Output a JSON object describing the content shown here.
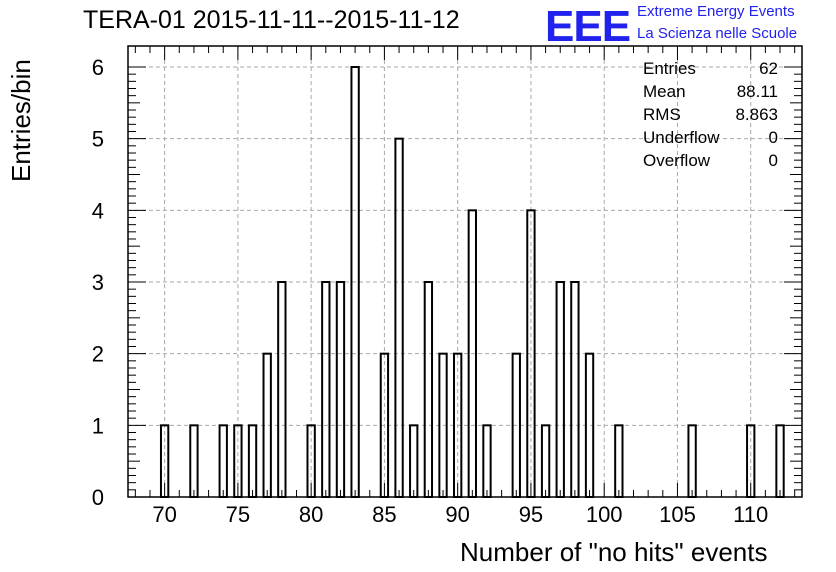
{
  "colors": {
    "logo": "#2222ee",
    "grid": "#aaaaaa",
    "axis": "#000000",
    "bar": "#000000"
  },
  "header": {
    "title": "TERA-01 2015-11-11--2015-11-12",
    "logo_text": "EEE",
    "org_line1": "Extreme Energy Events",
    "org_line2": "La Scienza nelle Scuole"
  },
  "stats": [
    {
      "label": "Entries",
      "value": "62"
    },
    {
      "label": "Mean",
      "value": "88.11"
    },
    {
      "label": "RMS",
      "value": "8.863"
    },
    {
      "label": "Underflow",
      "value": "0"
    },
    {
      "label": "Overflow",
      "value": "0"
    }
  ],
  "chart_data": {
    "type": "bar",
    "title": "TERA-01 2015-11-11--2015-11-12",
    "xlabel": "Number of \"no hits\" events",
    "ylabel": "Entries/bin",
    "xlim": [
      67.5,
      113.5
    ],
    "ylim": [
      0,
      6
    ],
    "grid": true,
    "x_ticks": [
      70,
      75,
      80,
      85,
      90,
      95,
      100,
      105,
      110
    ],
    "y_ticks": [
      0,
      1,
      2,
      3,
      4,
      5,
      6
    ],
    "bin_width": 0.5,
    "bins": [
      {
        "x": 70,
        "count": 1
      },
      {
        "x": 72,
        "count": 1
      },
      {
        "x": 74,
        "count": 1
      },
      {
        "x": 75,
        "count": 1
      },
      {
        "x": 76,
        "count": 1
      },
      {
        "x": 77,
        "count": 2
      },
      {
        "x": 78,
        "count": 3
      },
      {
        "x": 80,
        "count": 1
      },
      {
        "x": 81,
        "count": 3
      },
      {
        "x": 82,
        "count": 3
      },
      {
        "x": 83,
        "count": 6
      },
      {
        "x": 85,
        "count": 2
      },
      {
        "x": 86,
        "count": 5
      },
      {
        "x": 87,
        "count": 1
      },
      {
        "x": 88,
        "count": 3
      },
      {
        "x": 89,
        "count": 2
      },
      {
        "x": 90,
        "count": 2
      },
      {
        "x": 91,
        "count": 4
      },
      {
        "x": 92,
        "count": 1
      },
      {
        "x": 94,
        "count": 2
      },
      {
        "x": 95,
        "count": 4
      },
      {
        "x": 96,
        "count": 1
      },
      {
        "x": 97,
        "count": 3
      },
      {
        "x": 98,
        "count": 3
      },
      {
        "x": 99,
        "count": 2
      },
      {
        "x": 101,
        "count": 1
      },
      {
        "x": 106,
        "count": 1
      },
      {
        "x": 110,
        "count": 1
      },
      {
        "x": 112,
        "count": 1
      }
    ]
  }
}
